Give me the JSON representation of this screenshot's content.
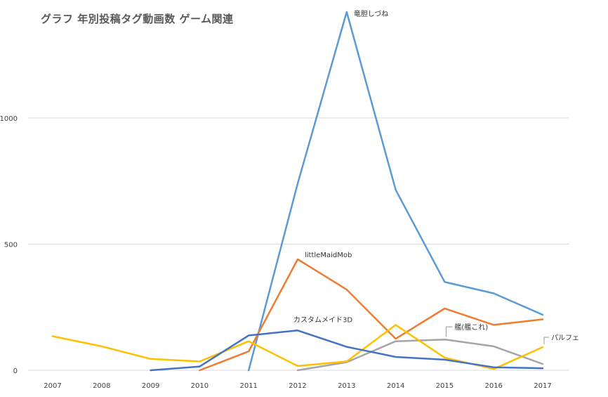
{
  "chart_data": {
    "type": "line",
    "title": "グラフ 年別投稿タグ動画数 ゲーム関連",
    "xlabel": "",
    "ylabel": "",
    "categories": [
      "2007",
      "2008",
      "2009",
      "2010",
      "2011",
      "2012",
      "2013",
      "2014",
      "2015",
      "2016",
      "2017"
    ],
    "yticks": [
      0,
      500,
      1000
    ],
    "ylim": [
      0,
      1420
    ],
    "grid": true,
    "series": [
      {
        "name": "竜胆しづね",
        "color": "#5b9bd5",
        "values": [
          null,
          null,
          null,
          null,
          0,
          740,
          1420,
          715,
          350,
          305,
          220
        ],
        "label_at": 6
      },
      {
        "name": "littleMaidMob",
        "color": "#ed7d31",
        "values": [
          null,
          null,
          null,
          0,
          75,
          440,
          320,
          125,
          245,
          180,
          202
        ],
        "label_at": 5
      },
      {
        "name": "艦(艦これ)",
        "color": "#a5a5a5",
        "values": [
          null,
          null,
          null,
          null,
          null,
          0,
          32,
          115,
          122,
          95,
          25
        ],
        "label_at": 8
      },
      {
        "name": "パルフェ",
        "color": "#ffc000",
        "values": [
          135,
          95,
          45,
          35,
          115,
          17,
          35,
          180,
          50,
          5,
          92
        ],
        "label_at": 10
      },
      {
        "name": "カスタムメイド3D",
        "color": "#4472c4",
        "values": [
          null,
          null,
          0,
          15,
          138,
          158,
          93,
          53,
          42,
          12,
          8
        ],
        "label_at": 5
      }
    ]
  }
}
